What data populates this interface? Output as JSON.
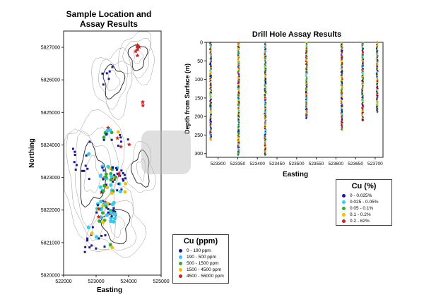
{
  "chart_data": [
    {
      "type": "scatter",
      "title_lines": [
        "Sample Location and",
        "Assay Results"
      ],
      "xlabel": "Easting",
      "ylabel": "Northing",
      "xlim": [
        522000,
        525000
      ],
      "ylim": [
        5820000,
        5827500
      ],
      "xticks": [
        "522000",
        "523000",
        "524000",
        "525000"
      ],
      "yticks": [
        "5820000",
        "5821000",
        "5822000",
        "5823000",
        "5824000",
        "5825000",
        "5826000",
        "5827000"
      ],
      "legend": {
        "title": "Cu (ppm)",
        "position": "bottom-right",
        "entries": [
          {
            "label": "0 - 190 ppm",
            "color": "#1a1a8c"
          },
          {
            "label": "190 - 500 ppm",
            "color": "#33ccee"
          },
          {
            "label": "500 - 1500 ppm",
            "color": "#33aa33"
          },
          {
            "label": "1500 - 4500 ppm",
            "color": "#f0c000"
          },
          {
            "label": "4500 - 56000 ppm",
            "color": "#cc2222"
          }
        ]
      }
    },
    {
      "type": "strip",
      "title": "Drill Hole Assay Results",
      "xlabel": "Easting",
      "ylabel": "Depth from Surface (m)",
      "xlim": [
        523270,
        523720
      ],
      "ylim": [
        0,
        310
      ],
      "xticks": [
        "523300",
        "523350",
        "523400",
        "523450",
        "523500",
        "523550",
        "523600",
        "523650",
        "523700"
      ],
      "yticks": [
        "0",
        "50",
        "100",
        "150",
        "200",
        "250",
        "300"
      ],
      "holes": [
        {
          "x": 523281,
          "depth": 265
        },
        {
          "x": 523352,
          "depth": 305
        },
        {
          "x": 523420,
          "depth": 305
        },
        {
          "x": 523525,
          "depth": 205
        },
        {
          "x": 523615,
          "depth": 238
        },
        {
          "x": 523668,
          "depth": 212
        },
        {
          "x": 523705,
          "depth": 190
        }
      ],
      "legend": {
        "title": "Cu (%)",
        "position": "right",
        "entries": [
          {
            "label": "0 - 0.025%",
            "color": "#1a1a8c"
          },
          {
            "label": "0.025 - 0.05%",
            "color": "#33ccee"
          },
          {
            "label": "0.05 - 0.1%",
            "color": "#33aa33"
          },
          {
            "label": "0.1 - 0.2%",
            "color": "#f0c000"
          },
          {
            "label": "0.2 - 62%",
            "color": "#cc2222"
          }
        ]
      }
    }
  ]
}
